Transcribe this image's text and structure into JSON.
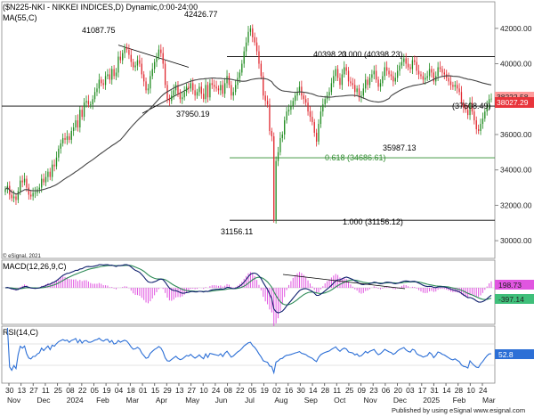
{
  "chart_data": {
    "type": "candlestick",
    "header": "($N225-NKI - NIKKEI INDICES,D) Dynamic,0:00-24:00",
    "ma_label": "MA(55,C)",
    "watermark": "© eSignal, 2021",
    "footer": "Published by using eSignal   www.esignal.com",
    "price_axis": {
      "ylim": [
        29000,
        43500
      ],
      "ticks": [
        "42000.00",
        "40000.00",
        "38000.00",
        "36000.00",
        "34000.00",
        "32000.00",
        "30000.00"
      ]
    },
    "last_price": "38027.29",
    "ma_value": "38222.58",
    "date_ticks": [
      "30",
      "13",
      "27",
      "11",
      "25",
      "08",
      "22",
      "05",
      "19",
      "04",
      "18",
      "01",
      "15",
      "29",
      "13",
      "27",
      "10",
      "24",
      "08",
      "22",
      "05",
      "19",
      "02",
      "16",
      "30",
      "14",
      "28",
      "11",
      "25",
      "09",
      "23",
      "06",
      "20",
      "03",
      "17",
      "31",
      "14",
      "28",
      "10",
      "24"
    ],
    "month_labels": [
      "Nov",
      "Dec",
      "2024",
      "Feb",
      "Mar",
      "Apr",
      "May",
      "Jun",
      "Jul",
      "Aug",
      "Sep",
      "Oct",
      "Nov",
      "Dec",
      "2025",
      "Feb",
      "Mar"
    ],
    "annotations": [
      "41087.75",
      "42426.77",
      "37950.19",
      "40398.23",
      "0.000 (40398.23)",
      "(37608.49)",
      "35987.13",
      "0.618 (34686.61)",
      "1.000 (31156.12)",
      "31156.11"
    ],
    "close": [
      32900,
      33100,
      32600,
      32400,
      32500,
      32300,
      32800,
      33400,
      33300,
      33500,
      33000,
      32600,
      32500,
      32700,
      32700,
      32900,
      33000,
      33500,
      33300,
      33600,
      33900,
      33600,
      34300,
      34200,
      34700,
      35200,
      35500,
      35800,
      35700,
      35900,
      35700,
      36200,
      36400,
      36800,
      36400,
      37400,
      37000,
      37800,
      37900,
      37700,
      37700,
      38000,
      38400,
      38600,
      39100,
      38900,
      38800,
      39300,
      39400,
      39100,
      39700,
      39300,
      39500,
      40400,
      40200,
      40600,
      40900,
      40800,
      40500,
      40100,
      39800,
      39900,
      40200,
      40000,
      39400,
      39000,
      38500,
      38600,
      39300,
      39700,
      40100,
      40400,
      40800,
      40600,
      40000,
      38800,
      38000,
      37900,
      38200,
      38500,
      38800,
      38300,
      38000,
      38100,
      38400,
      38700,
      38600,
      38900,
      38500,
      38200,
      38400,
      38700,
      38300,
      38000,
      38800,
      38100,
      38900,
      38800,
      38700,
      38600,
      38500,
      38800,
      38300,
      38900,
      39300,
      38800,
      38200,
      38400,
      38800,
      39200,
      39500,
      40000,
      40700,
      41200,
      41800,
      42000,
      41500,
      41200,
      40700,
      40000,
      39300,
      38200,
      37900,
      37700,
      36200,
      35900,
      31200,
      34500,
      35000,
      35800,
      36000,
      36800,
      37300,
      37400,
      37600,
      37900,
      38200,
      38400,
      38700,
      38200,
      38000,
      37800,
      37300,
      37000,
      36700,
      36100,
      35600,
      36600,
      37300,
      37700,
      38000,
      38200,
      38400,
      38900,
      39300,
      39700,
      39200,
      38800,
      39400,
      39800,
      39600,
      39000,
      38900,
      38800,
      38400,
      38600,
      38100,
      38200,
      38600,
      39100,
      38800,
      39200,
      39400,
      39600,
      39100,
      38700,
      38900,
      39300,
      39800,
      39600,
      39400,
      39300,
      39000,
      39200,
      39600,
      39900,
      40100,
      40300,
      40000,
      39800,
      39700,
      40200,
      40100,
      39600,
      39400,
      39300,
      39100,
      39200,
      39300,
      39700,
      39500,
      39000,
      39300,
      39800,
      39700,
      39500,
      39400,
      39200,
      39000,
      38800,
      38700,
      38800,
      38600,
      38400,
      37800,
      37500,
      37400,
      37100,
      37800,
      37300,
      36800,
      36300,
      36200,
      36600,
      36900,
      37300,
      37700,
      38000,
      38027
    ]
  }
}
